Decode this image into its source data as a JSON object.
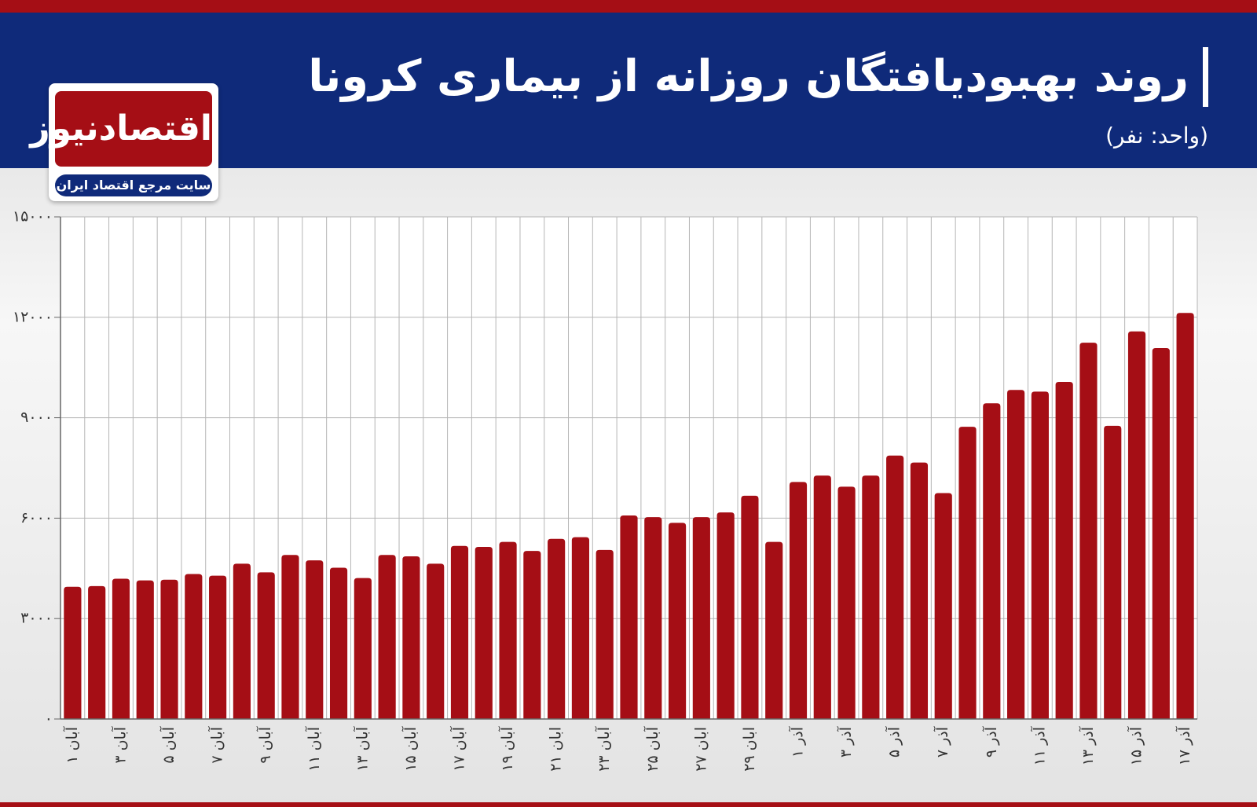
{
  "logo": {
    "name": "اقتصادنیوز",
    "tagline": "سایت مرجع اقتصاد ایران"
  },
  "chart_data": {
    "type": "bar",
    "title": "روند بهبودیافتگان روزانه از بیماری کرونا",
    "subtitle": "(واحد: نفر)",
    "categories": [
      "۱ آبان",
      null,
      "۳ آبان",
      null,
      "۵ آبان",
      null,
      "۷ آبان",
      null,
      "۹ آبان",
      null,
      "۱۱ آبان",
      null,
      "۱۳ آبان",
      null,
      "۱۵ آبان",
      null,
      "۱۷ آبان",
      null,
      "۱۹ آبان",
      null,
      "۲۱ ابان",
      null,
      "۲۳ آبان",
      null,
      "۲۵ آبان",
      null,
      "۲۷ ابان",
      null,
      "۲۹ ابان",
      null,
      "۱ آذر",
      null,
      "۳ آذر",
      null,
      "۵ آذر",
      null,
      "۷ آذر",
      null,
      "۹ آذر",
      null,
      "۱۱ آذر",
      null,
      "۱۳ آذر",
      null,
      "۱۵ آذر",
      null,
      "۱۷ آذر"
    ],
    "values": [
      3950,
      3970,
      4190,
      4140,
      4160,
      4330,
      4280,
      4640,
      4380,
      4900,
      4740,
      4520,
      4210,
      4900,
      4860,
      4640,
      5170,
      5140,
      5290,
      5020,
      5380,
      5430,
      5050,
      6080,
      6030,
      5860,
      6030,
      6170,
      6670,
      5290,
      7080,
      7270,
      6940,
      7270,
      7870,
      7660,
      6750,
      8730,
      9430,
      9830,
      9780,
      10070,
      11240,
      8760,
      11580,
      11080,
      12130
    ],
    "color": "#a50e15",
    "ylim": [
      0,
      15000
    ],
    "yticks": [
      {
        "value": 0,
        "label": "۰"
      },
      {
        "value": 3000,
        "label": "۳۰۰۰"
      },
      {
        "value": 6000,
        "label": "۶۰۰۰"
      },
      {
        "value": 9000,
        "label": "۹۰۰۰"
      },
      {
        "value": 12000,
        "label": "۱۲۰۰۰"
      },
      {
        "value": 15000,
        "label": "۱۵۰۰۰"
      }
    ],
    "grid": true
  }
}
